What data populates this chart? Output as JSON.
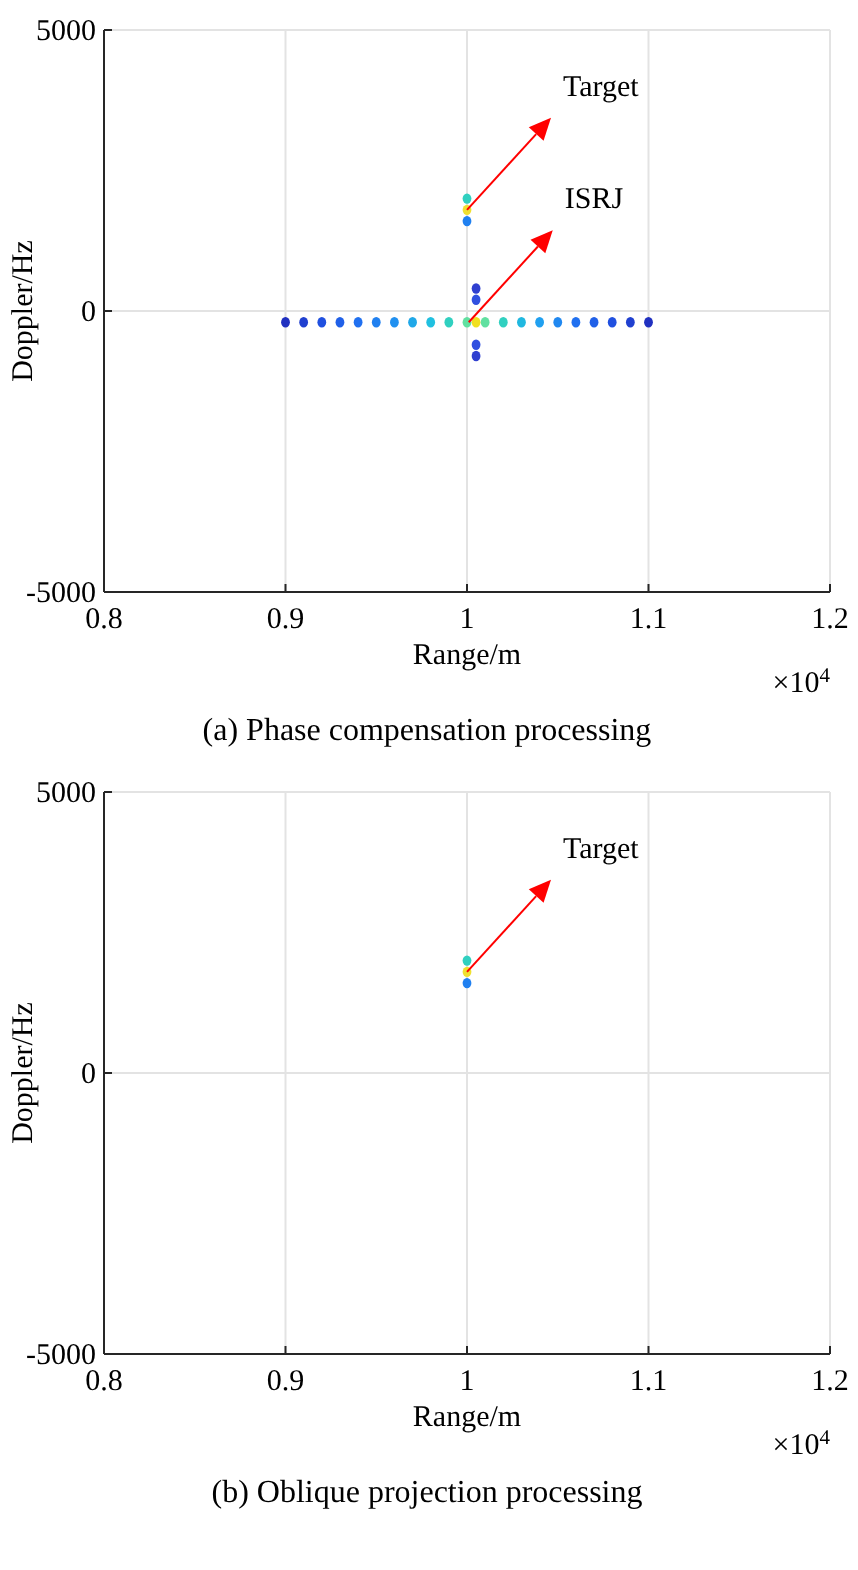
{
  "chart_data": [
    {
      "type": "scatter",
      "title": "(a) Phase compensation processing",
      "xlabel": "Range/m",
      "ylabel": "Doppler/Hz",
      "xlim": [
        0.8,
        1.2
      ],
      "xticks": [
        0.8,
        0.9,
        {
          "value": 1,
          "label": "1"
        },
        1.1,
        1.2
      ],
      "ylim": [
        -5000,
        5000
      ],
      "yticks": [
        -5000,
        0,
        5000
      ],
      "grid": true,
      "marker": "circle",
      "series": [
        {
          "x": [
            1,
            1,
            1
          ],
          "values": [
            1600,
            1800,
            2000
          ],
          "colors": [
            "#2080f0",
            "#f0e030",
            "#30d0c0"
          ]
        },
        {
          "x": [
            0.9,
            0.91,
            0.92,
            0.93,
            0.94,
            0.95,
            0.96,
            0.97,
            0.98,
            0.99,
            1.0,
            1.005,
            1.01,
            1.02,
            1.03,
            1.04,
            1.05,
            1.06,
            1.07,
            1.08,
            1.09,
            1.1,
            1.005,
            1.005,
            1.005,
            1.005
          ],
          "values": [
            -200,
            -200,
            -200,
            -200,
            -200,
            -200,
            -200,
            -200,
            -200,
            -200,
            -200,
            -200,
            -200,
            -200,
            -200,
            -200,
            -200,
            -200,
            -200,
            -200,
            -200,
            -200,
            400,
            200,
            -600,
            -800
          ],
          "colors": [
            "#2030c0",
            "#2040d0",
            "#2050e0",
            "#2060e8",
            "#2070f0",
            "#2080f0",
            "#2090f0",
            "#20a8e8",
            "#20c0e0",
            "#30d0c0",
            "#60e0a0",
            "#f0e020",
            "#60e0a0",
            "#30d0c0",
            "#20b8e0",
            "#20a0f0",
            "#2088f0",
            "#2070f0",
            "#2060e8",
            "#2050e0",
            "#2040d0",
            "#2030c0",
            "#3040d0",
            "#3050e0",
            "#3050e0",
            "#3040d0"
          ]
        }
      ],
      "annotations": [
        "Target",
        "ISRJ",
        "×10$^{4}$"
      ]
    },
    {
      "type": "scatter",
      "title": "(b) Oblique projection processing",
      "xlabel": "Range/m",
      "ylabel": "Doppler/Hz",
      "xlim": [
        0.8,
        1.2
      ],
      "xticks": [
        0.8,
        0.9,
        {
          "value": 1,
          "label": "1"
        },
        1.1,
        1.2
      ],
      "ylim": [
        -5000,
        5000
      ],
      "yticks": [
        -5000,
        0,
        5000
      ],
      "grid": true,
      "marker": "circle",
      "series": [
        {
          "x": [
            1,
            1,
            1
          ],
          "values": [
            1600,
            1800,
            2000
          ],
          "colors": [
            "#2080f0",
            "#f0e030",
            "#30d0c0"
          ]
        }
      ],
      "annotations": [
        "Target",
        "×10$^{4}$"
      ]
    }
  ]
}
